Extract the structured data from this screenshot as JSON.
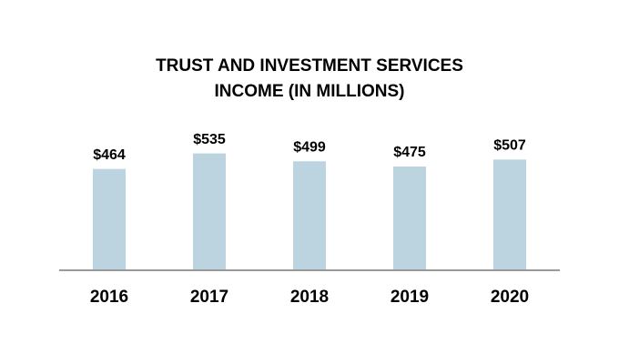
{
  "chart_data": {
    "type": "bar",
    "title": [
      "TRUST AND INVESTMENT SERVICES",
      "INCOME (IN MILLIONS)"
    ],
    "categories": [
      "2016",
      "2017",
      "2018",
      "2019",
      "2020"
    ],
    "values": [
      464,
      535,
      499,
      475,
      507
    ],
    "value_labels": [
      "$464",
      "$535",
      "$499",
      "$475",
      "$507"
    ],
    "color": "#bcd4e0"
  }
}
